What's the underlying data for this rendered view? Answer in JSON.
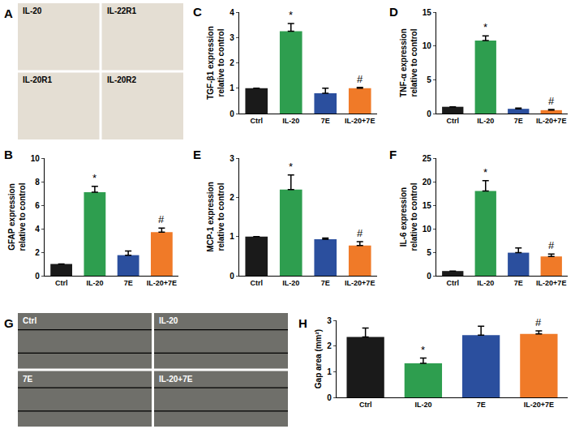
{
  "chart_data": [
    {
      "panel": "B",
      "type": "bar",
      "categories": [
        "Ctrl",
        "IL-20",
        "7E",
        "IL-20+7E"
      ],
      "values": [
        1,
        7.1,
        1.75,
        3.7
      ],
      "error": [
        0,
        0.5,
        0.35,
        0.35
      ],
      "colors": [
        "#1a1a1a",
        "#2e9e4f",
        "#2b4f9e",
        "#f07a28"
      ],
      "ylabel": "GFAP expression relative to control",
      "ylim": [
        0,
        10
      ],
      "yticks": [
        0,
        2,
        4,
        6,
        8,
        10
      ],
      "annotations": [
        {
          "category": "IL-20",
          "text": "*"
        },
        {
          "category": "IL-20+7E",
          "text": "#"
        }
      ]
    },
    {
      "panel": "C",
      "type": "bar",
      "categories": [
        "Ctrl",
        "IL-20",
        "7E",
        "IL-20+7E"
      ],
      "values": [
        1,
        3.25,
        0.8,
        1.0
      ],
      "error": [
        0,
        0.3,
        0.2,
        0.03
      ],
      "colors": [
        "#1a1a1a",
        "#2e9e4f",
        "#2b4f9e",
        "#f07a28"
      ],
      "ylabel": "TGF-β1 expression relative to control",
      "ylim": [
        0,
        4
      ],
      "yticks": [
        0,
        1,
        2,
        3,
        4
      ],
      "annotations": [
        {
          "category": "IL-20",
          "text": "*"
        },
        {
          "category": "IL-20+7E",
          "text": "#"
        }
      ]
    },
    {
      "panel": "D",
      "type": "bar",
      "categories": [
        "Ctrl",
        "IL-20",
        "7E",
        "IL-20+7E"
      ],
      "values": [
        1,
        10.8,
        0.7,
        0.5
      ],
      "error": [
        0,
        0.7,
        0.1,
        0.1
      ],
      "colors": [
        "#1a1a1a",
        "#2e9e4f",
        "#2b4f9e",
        "#f07a28"
      ],
      "ylabel": "TNF-α expression relative to control",
      "ylim": [
        0,
        15
      ],
      "yticks": [
        0,
        5,
        10,
        15
      ],
      "annotations": [
        {
          "category": "IL-20",
          "text": "*"
        },
        {
          "category": "IL-20+7E",
          "text": "#"
        }
      ]
    },
    {
      "panel": "E",
      "type": "bar",
      "categories": [
        "Ctrl",
        "IL-20",
        "7E",
        "IL-20+7E"
      ],
      "values": [
        1,
        2.2,
        0.93,
        0.77
      ],
      "error": [
        0,
        0.37,
        0.03,
        0.1
      ],
      "colors": [
        "#1a1a1a",
        "#2e9e4f",
        "#2b4f9e",
        "#f07a28"
      ],
      "ylabel": "MCP-1 expression relative to control",
      "ylim": [
        0,
        3
      ],
      "yticks": [
        0,
        1,
        2,
        3
      ],
      "annotations": [
        {
          "category": "IL-20",
          "text": "*"
        },
        {
          "category": "IL-20+7E",
          "text": "#"
        }
      ]
    },
    {
      "panel": "F",
      "type": "bar",
      "categories": [
        "Ctrl",
        "IL-20",
        "7E",
        "IL-20+7E"
      ],
      "values": [
        1,
        18,
        4.9,
        4.1
      ],
      "error": [
        0,
        2.2,
        1.0,
        0.5
      ],
      "colors": [
        "#1a1a1a",
        "#2e9e4f",
        "#2b4f9e",
        "#f07a28"
      ],
      "ylabel": "IL-6 expression relative to control",
      "ylim": [
        0,
        25
      ],
      "yticks": [
        0,
        5,
        10,
        15,
        20,
        25
      ],
      "annotations": [
        {
          "category": "IL-20",
          "text": "*"
        },
        {
          "category": "IL-20+7E",
          "text": "#"
        }
      ]
    },
    {
      "panel": "H",
      "type": "bar",
      "categories": [
        "Ctrl",
        "IL-20",
        "7E",
        "IL-20+7E"
      ],
      "values": [
        2.35,
        1.33,
        2.42,
        2.47
      ],
      "error": [
        0.35,
        0.2,
        0.35,
        0.12
      ],
      "colors": [
        "#1a1a1a",
        "#2e9e4f",
        "#2b4f9e",
        "#f07a28"
      ],
      "ylabel": "Gap area (mm²)",
      "ylim": [
        0,
        3
      ],
      "yticks": [
        0,
        1,
        2,
        3
      ],
      "annotations": [
        {
          "category": "IL-20",
          "text": "*"
        },
        {
          "category": "IL-20+7E",
          "text": "#"
        }
      ]
    }
  ],
  "image_panels": [
    {
      "panel": "A",
      "labels": [
        "IL-20",
        "IL-22R1",
        "IL-20R1",
        "IL-20R2"
      ]
    },
    {
      "panel": "G",
      "labels": [
        "Ctrl",
        "IL-20",
        "7E",
        "IL-20+7E"
      ]
    }
  ]
}
